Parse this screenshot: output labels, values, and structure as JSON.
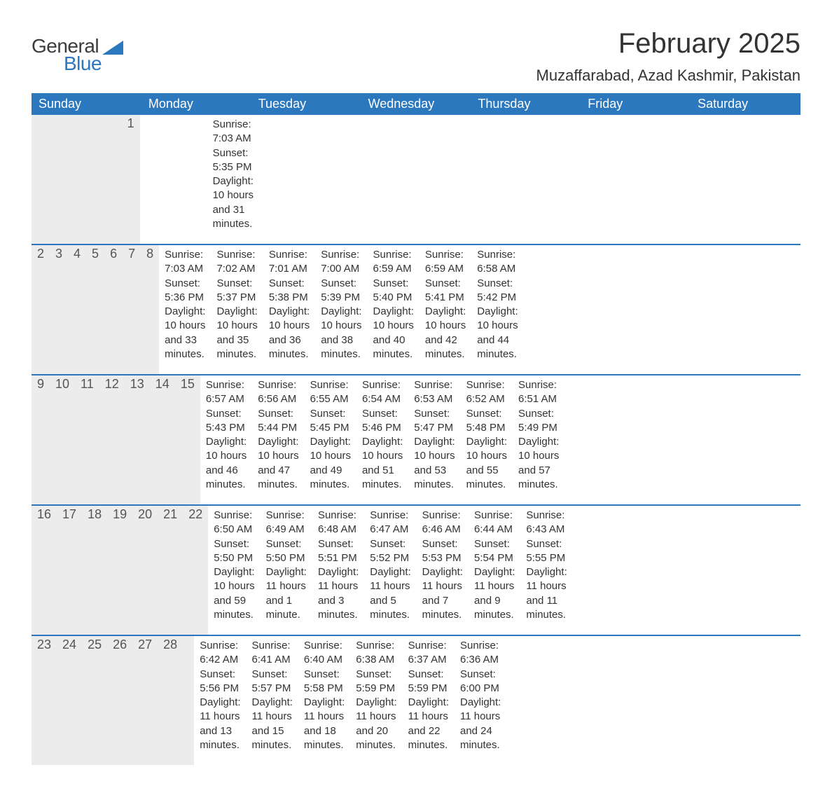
{
  "logo": {
    "text_general": "General",
    "text_blue": "Blue",
    "triangle_color": "#2b78bf"
  },
  "title": "February 2025",
  "location": "Muzaffarabad, Azad Kashmir, Pakistan",
  "colors": {
    "header_bg": "#2b78bf",
    "header_text": "#ffffff",
    "daynum_bg": "#ececec",
    "daynum_text": "#555555",
    "body_text": "#333333",
    "week_border": "#2b78bf",
    "background": "#ffffff"
  },
  "typography": {
    "title_fontsize": 40,
    "location_fontsize": 22,
    "weekday_fontsize": 18,
    "daynum_fontsize": 18,
    "content_fontsize": 15
  },
  "weekdays": [
    "Sunday",
    "Monday",
    "Tuesday",
    "Wednesday",
    "Thursday",
    "Friday",
    "Saturday"
  ],
  "weeks": [
    [
      {
        "num": "",
        "sunrise": "",
        "sunset": "",
        "daylight": ""
      },
      {
        "num": "",
        "sunrise": "",
        "sunset": "",
        "daylight": ""
      },
      {
        "num": "",
        "sunrise": "",
        "sunset": "",
        "daylight": ""
      },
      {
        "num": "",
        "sunrise": "",
        "sunset": "",
        "daylight": ""
      },
      {
        "num": "",
        "sunrise": "",
        "sunset": "",
        "daylight": ""
      },
      {
        "num": "",
        "sunrise": "",
        "sunset": "",
        "daylight": ""
      },
      {
        "num": "1",
        "sunrise": "Sunrise: 7:03 AM",
        "sunset": "Sunset: 5:35 PM",
        "daylight": "Daylight: 10 hours and 31 minutes."
      }
    ],
    [
      {
        "num": "2",
        "sunrise": "Sunrise: 7:03 AM",
        "sunset": "Sunset: 5:36 PM",
        "daylight": "Daylight: 10 hours and 33 minutes."
      },
      {
        "num": "3",
        "sunrise": "Sunrise: 7:02 AM",
        "sunset": "Sunset: 5:37 PM",
        "daylight": "Daylight: 10 hours and 35 minutes."
      },
      {
        "num": "4",
        "sunrise": "Sunrise: 7:01 AM",
        "sunset": "Sunset: 5:38 PM",
        "daylight": "Daylight: 10 hours and 36 minutes."
      },
      {
        "num": "5",
        "sunrise": "Sunrise: 7:00 AM",
        "sunset": "Sunset: 5:39 PM",
        "daylight": "Daylight: 10 hours and 38 minutes."
      },
      {
        "num": "6",
        "sunrise": "Sunrise: 6:59 AM",
        "sunset": "Sunset: 5:40 PM",
        "daylight": "Daylight: 10 hours and 40 minutes."
      },
      {
        "num": "7",
        "sunrise": "Sunrise: 6:59 AM",
        "sunset": "Sunset: 5:41 PM",
        "daylight": "Daylight: 10 hours and 42 minutes."
      },
      {
        "num": "8",
        "sunrise": "Sunrise: 6:58 AM",
        "sunset": "Sunset: 5:42 PM",
        "daylight": "Daylight: 10 hours and 44 minutes."
      }
    ],
    [
      {
        "num": "9",
        "sunrise": "Sunrise: 6:57 AM",
        "sunset": "Sunset: 5:43 PM",
        "daylight": "Daylight: 10 hours and 46 minutes."
      },
      {
        "num": "10",
        "sunrise": "Sunrise: 6:56 AM",
        "sunset": "Sunset: 5:44 PM",
        "daylight": "Daylight: 10 hours and 47 minutes."
      },
      {
        "num": "11",
        "sunrise": "Sunrise: 6:55 AM",
        "sunset": "Sunset: 5:45 PM",
        "daylight": "Daylight: 10 hours and 49 minutes."
      },
      {
        "num": "12",
        "sunrise": "Sunrise: 6:54 AM",
        "sunset": "Sunset: 5:46 PM",
        "daylight": "Daylight: 10 hours and 51 minutes."
      },
      {
        "num": "13",
        "sunrise": "Sunrise: 6:53 AM",
        "sunset": "Sunset: 5:47 PM",
        "daylight": "Daylight: 10 hours and 53 minutes."
      },
      {
        "num": "14",
        "sunrise": "Sunrise: 6:52 AM",
        "sunset": "Sunset: 5:48 PM",
        "daylight": "Daylight: 10 hours and 55 minutes."
      },
      {
        "num": "15",
        "sunrise": "Sunrise: 6:51 AM",
        "sunset": "Sunset: 5:49 PM",
        "daylight": "Daylight: 10 hours and 57 minutes."
      }
    ],
    [
      {
        "num": "16",
        "sunrise": "Sunrise: 6:50 AM",
        "sunset": "Sunset: 5:50 PM",
        "daylight": "Daylight: 10 hours and 59 minutes."
      },
      {
        "num": "17",
        "sunrise": "Sunrise: 6:49 AM",
        "sunset": "Sunset: 5:50 PM",
        "daylight": "Daylight: 11 hours and 1 minute."
      },
      {
        "num": "18",
        "sunrise": "Sunrise: 6:48 AM",
        "sunset": "Sunset: 5:51 PM",
        "daylight": "Daylight: 11 hours and 3 minutes."
      },
      {
        "num": "19",
        "sunrise": "Sunrise: 6:47 AM",
        "sunset": "Sunset: 5:52 PM",
        "daylight": "Daylight: 11 hours and 5 minutes."
      },
      {
        "num": "20",
        "sunrise": "Sunrise: 6:46 AM",
        "sunset": "Sunset: 5:53 PM",
        "daylight": "Daylight: 11 hours and 7 minutes."
      },
      {
        "num": "21",
        "sunrise": "Sunrise: 6:44 AM",
        "sunset": "Sunset: 5:54 PM",
        "daylight": "Daylight: 11 hours and 9 minutes."
      },
      {
        "num": "22",
        "sunrise": "Sunrise: 6:43 AM",
        "sunset": "Sunset: 5:55 PM",
        "daylight": "Daylight: 11 hours and 11 minutes."
      }
    ],
    [
      {
        "num": "23",
        "sunrise": "Sunrise: 6:42 AM",
        "sunset": "Sunset: 5:56 PM",
        "daylight": "Daylight: 11 hours and 13 minutes."
      },
      {
        "num": "24",
        "sunrise": "Sunrise: 6:41 AM",
        "sunset": "Sunset: 5:57 PM",
        "daylight": "Daylight: 11 hours and 15 minutes."
      },
      {
        "num": "25",
        "sunrise": "Sunrise: 6:40 AM",
        "sunset": "Sunset: 5:58 PM",
        "daylight": "Daylight: 11 hours and 18 minutes."
      },
      {
        "num": "26",
        "sunrise": "Sunrise: 6:38 AM",
        "sunset": "Sunset: 5:59 PM",
        "daylight": "Daylight: 11 hours and 20 minutes."
      },
      {
        "num": "27",
        "sunrise": "Sunrise: 6:37 AM",
        "sunset": "Sunset: 5:59 PM",
        "daylight": "Daylight: 11 hours and 22 minutes."
      },
      {
        "num": "28",
        "sunrise": "Sunrise: 6:36 AM",
        "sunset": "Sunset: 6:00 PM",
        "daylight": "Daylight: 11 hours and 24 minutes."
      },
      {
        "num": "",
        "sunrise": "",
        "sunset": "",
        "daylight": ""
      }
    ]
  ]
}
